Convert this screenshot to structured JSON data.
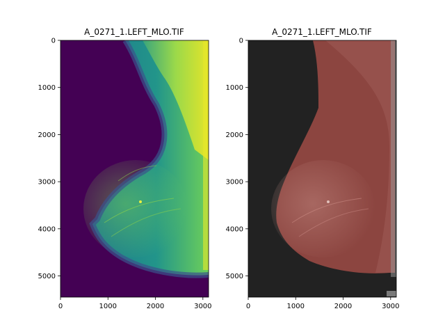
{
  "panels": [
    {
      "title": "A_0271_1.LEFT_MLO.TIF",
      "style": "viridis",
      "x_ticks": [
        "0",
        "1000",
        "2000",
        "3000"
      ],
      "y_ticks": [
        "0",
        "1000",
        "2000",
        "3000",
        "4000",
        "5000"
      ],
      "x_range": [
        0,
        3120
      ],
      "y_range": [
        0,
        5450
      ]
    },
    {
      "title": "A_0271_1.LEFT_MLO.TIF",
      "style": "segmentation-overlay",
      "x_ticks": [
        "0",
        "1000",
        "2000",
        "3000"
      ],
      "y_ticks": [
        "0",
        "1000",
        "2000",
        "3000",
        "4000",
        "5000"
      ],
      "x_range": [
        0,
        3120
      ],
      "y_range": [
        0,
        5450
      ]
    }
  ],
  "colors": {
    "viridis_background": "#440154",
    "viridis_mid": "#2a8a88",
    "viridis_high": "#c8e03a",
    "overlay_background": "#222222",
    "overlay_tissue": "#8c4540"
  }
}
